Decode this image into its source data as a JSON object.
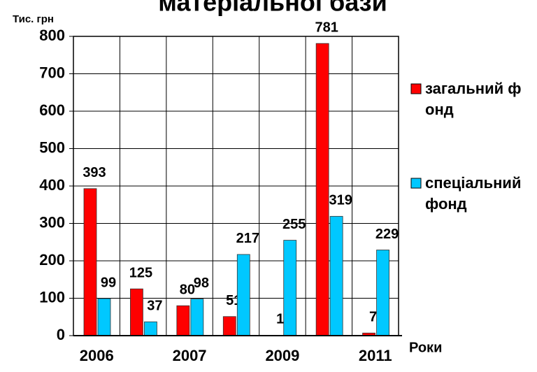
{
  "chart_data": {
    "type": "bar",
    "title": "матеріальної бази",
    "y_label": "Тис. грн",
    "x_label": "Роки",
    "categories": [
      "2006",
      null,
      "2007",
      null,
      "2009",
      null,
      "2011"
    ],
    "series": [
      {
        "name": "загальний фонд",
        "color": "#ff0000",
        "values": [
          393,
          125,
          80,
          51,
          1,
          781,
          7
        ]
      },
      {
        "name": "спеціальний фонд",
        "color": "#00c8ff",
        "values": [
          99,
          37,
          98,
          217,
          255,
          319,
          229
        ]
      }
    ],
    "ylim": [
      0,
      800
    ],
    "yticks": [
      0,
      100,
      200,
      300,
      400,
      500,
      600,
      700,
      800
    ],
    "grid": true
  }
}
